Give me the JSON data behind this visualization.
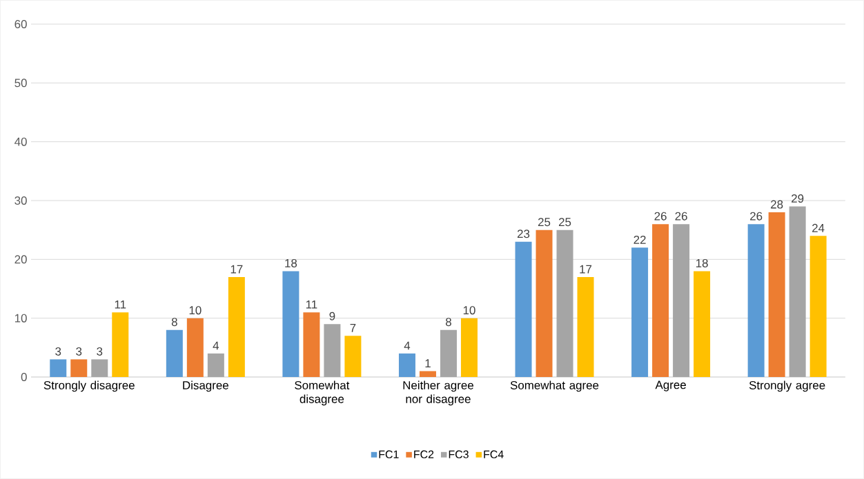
{
  "chart_data": {
    "type": "bar",
    "categories": [
      "Strongly disagree",
      "Disagree",
      "Somewhat disagree",
      "Neither agree nor disagree",
      "Somewhat agree",
      "Agree",
      "Strongly agree"
    ],
    "series": [
      {
        "name": "FC1",
        "color": "#5b9bd5",
        "values": [
          3,
          8,
          18,
          4,
          23,
          22,
          26
        ]
      },
      {
        "name": "FC2",
        "color": "#ed7d31",
        "values": [
          3,
          10,
          11,
          1,
          25,
          26,
          28
        ]
      },
      {
        "name": "FC3",
        "color": "#a5a5a5",
        "values": [
          3,
          4,
          9,
          8,
          25,
          26,
          29
        ]
      },
      {
        "name": "FC4",
        "color": "#ffc000",
        "values": [
          11,
          17,
          7,
          10,
          17,
          18,
          24
        ]
      }
    ],
    "ylim": [
      0,
      60
    ],
    "yticks": [
      0,
      10,
      20,
      30,
      40,
      50,
      60
    ],
    "grid": "y",
    "legend": "bottom",
    "data_labels": true
  }
}
